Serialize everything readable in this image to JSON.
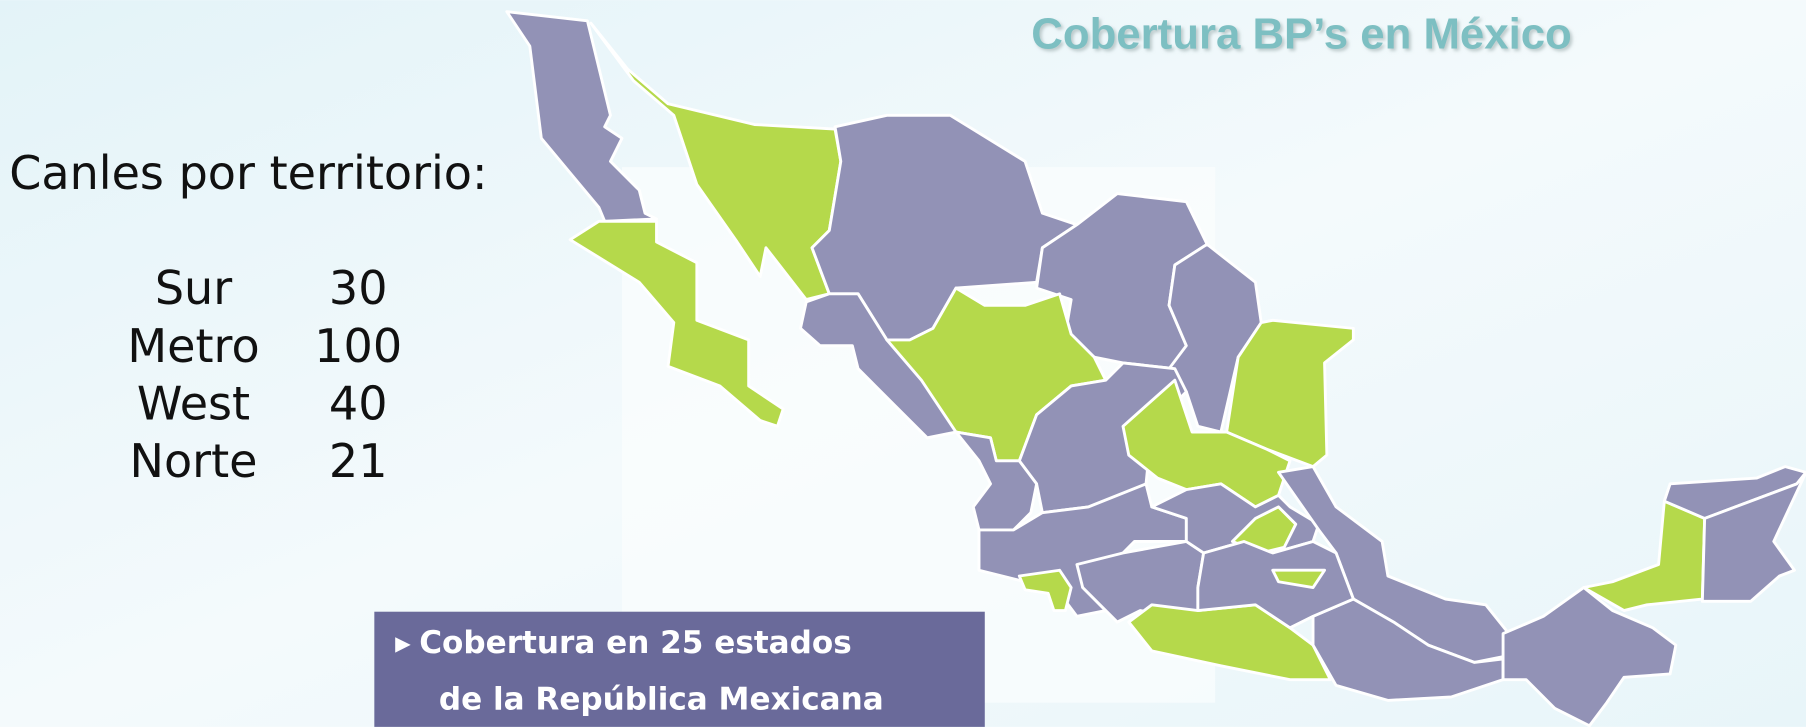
{
  "title": "Cobertura BP’s en México",
  "territories": {
    "heading": "Canles por territorio:",
    "rows": [
      [
        "Sur",
        "30"
      ],
      [
        "Metro",
        "100"
      ],
      [
        "West",
        "40"
      ],
      [
        "Norte",
        "21"
      ]
    ]
  },
  "coverage": {
    "lines": [
      "Cobertura en 25 estados",
      "de la República Mexicana"
    ]
  }
}
